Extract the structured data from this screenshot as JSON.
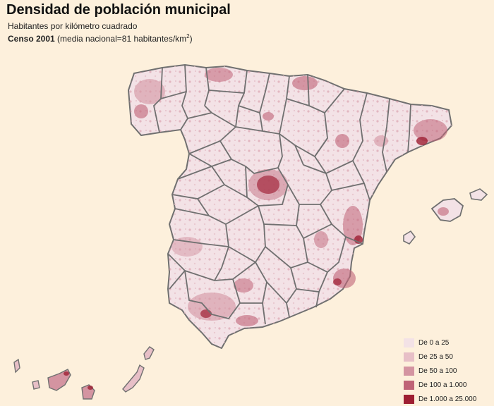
{
  "header": {
    "title": "Densidad de población municipal",
    "subtitle": "Habitantes por kilómetro cuadrado",
    "census_bold": "Censo 2001",
    "census_note": "(media nacional=81 habitantes/km",
    "census_sup": "2",
    "census_close": ")"
  },
  "legend": {
    "items": [
      {
        "label": "De 0 a 25",
        "color": "#f3e2e6"
      },
      {
        "label": "De 25 a 50",
        "color": "#e7bfc7"
      },
      {
        "label": "De 50 a 100",
        "color": "#d494a1"
      },
      {
        "label": "De 100 a 1.000",
        "color": "#bf6377"
      },
      {
        "label": "De 1.000 a 25.000",
        "color": "#9e1f33"
      }
    ]
  },
  "colors": {
    "background": "#fdf0dc",
    "border": "#707070"
  }
}
